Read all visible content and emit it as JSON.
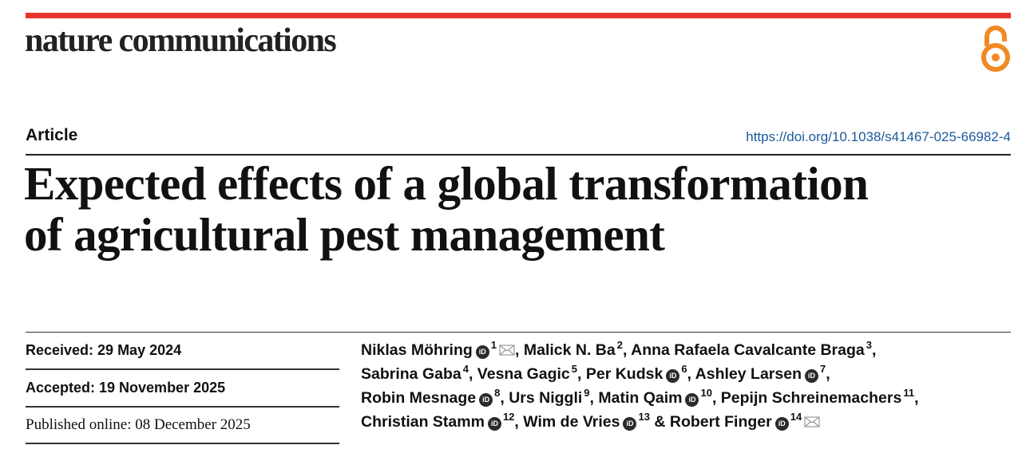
{
  "journal": {
    "name": "nature communications"
  },
  "colors": {
    "accent_bar": "#e8352b",
    "open_access": "#f08a24",
    "doi_link": "#1b5a9c"
  },
  "article": {
    "type": "Article",
    "doi": "https://doi.org/10.1038/s41467-025-66982-4",
    "title_line1": "Expected effects of a global transformation",
    "title_line2": "of agricultural pest management"
  },
  "dates": {
    "received": "Received: 29 May 2024",
    "accepted": "Accepted: 19 November 2025",
    "published": "Published online: 08 December 2025"
  },
  "authors": [
    {
      "name": "Niklas Möhring",
      "orcid": true,
      "aff": "1",
      "email": true,
      "sep": ", "
    },
    {
      "name": "Malick N. Ba",
      "orcid": false,
      "aff": "2",
      "email": false,
      "sep": ", "
    },
    {
      "name": "Anna Rafaela Cavalcante Braga",
      "orcid": false,
      "aff": "3",
      "email": false,
      "sep": ","
    },
    {
      "name": "Sabrina Gaba",
      "orcid": false,
      "aff": "4",
      "email": false,
      "sep": ", "
    },
    {
      "name": "Vesna Gagic",
      "orcid": false,
      "aff": "5",
      "email": false,
      "sep": ", "
    },
    {
      "name": "Per Kudsk",
      "orcid": true,
      "aff": "6",
      "email": false,
      "sep": ", "
    },
    {
      "name": "Ashley Larsen",
      "orcid": true,
      "aff": "7",
      "email": false,
      "sep": ","
    },
    {
      "name": "Robin Mesnage",
      "orcid": true,
      "aff": "8",
      "email": false,
      "sep": ", "
    },
    {
      "name": "Urs Niggli",
      "orcid": false,
      "aff": "9",
      "email": false,
      "sep": ", "
    },
    {
      "name": "Matin Qaim",
      "orcid": true,
      "aff": "10",
      "email": false,
      "sep": ", "
    },
    {
      "name": "Pepijn Schreinemachers",
      "orcid": false,
      "aff": "11",
      "email": false,
      "sep": ","
    },
    {
      "name": "Christian Stamm",
      "orcid": true,
      "aff": "12",
      "email": false,
      "sep": ", "
    },
    {
      "name": "Wim de Vries",
      "orcid": true,
      "aff": "13",
      "email": false,
      "sep": " & "
    },
    {
      "name": "Robert Finger",
      "orcid": true,
      "aff": "14",
      "email": true,
      "sep": ""
    }
  ],
  "icons": {
    "orcid": "orcid-icon",
    "email": "envelope-icon",
    "open_access": "open-access-lock-icon"
  }
}
